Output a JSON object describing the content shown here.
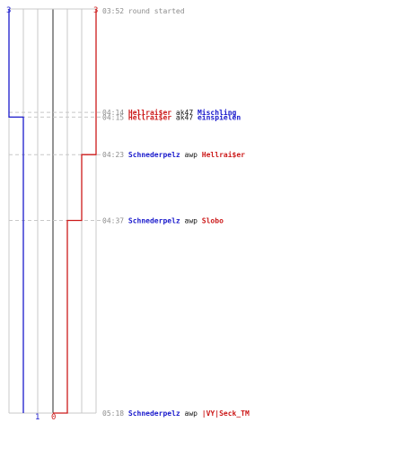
{
  "colors": {
    "blue_team": "#1a1acc",
    "red_team": "#cc1a1a",
    "grid": "#c8c8c8",
    "time": "#8c8c8c",
    "text": "#111111"
  },
  "chart_data": {
    "type": "line",
    "ylim_rows": [
      "03:52",
      "05:18"
    ],
    "start_counts": {
      "blue": "3",
      "red": "3"
    },
    "end_counts": {
      "blue": "1",
      "red": "0"
    },
    "series": [
      {
        "team": "blue",
        "color": "#1a1acc",
        "steps": [
          {
            "time": "03:52",
            "count": 3
          },
          {
            "time": "04:14",
            "count": 2
          },
          {
            "time": "04:15",
            "count": 1
          }
        ]
      },
      {
        "team": "red",
        "color": "#cc1a1a",
        "steps": [
          {
            "time": "03:52",
            "count": 3
          },
          {
            "time": "04:23",
            "count": 2
          },
          {
            "time": "04:37",
            "count": 1
          },
          {
            "time": "05:18",
            "count": 0
          }
        ]
      }
    ],
    "events": [
      {
        "time": "03:52",
        "killer": "",
        "killer_team": "",
        "weapon": "round started",
        "victim": "",
        "victim_team": ""
      },
      {
        "time": "04:14",
        "killer": "Hellrai$er",
        "killer_team": "red",
        "weapon": "ak47",
        "victim": "Mischling",
        "victim_team": "blue"
      },
      {
        "time": "04:15",
        "killer": "Hellrai$er",
        "killer_team": "red",
        "weapon": "ak47",
        "victim": "einspielen",
        "victim_team": "blue"
      },
      {
        "time": "04:23",
        "killer": "Schnederpelz",
        "killer_team": "blue",
        "weapon": "awp",
        "victim": "Hellrai$er",
        "victim_team": "red"
      },
      {
        "time": "04:37",
        "killer": "Schnederpelz",
        "killer_team": "blue",
        "weapon": "awp",
        "victim": "Slobo",
        "victim_team": "red"
      },
      {
        "time": "05:18",
        "killer": "Schnederpelz",
        "killer_team": "blue",
        "weapon": "awp",
        "victim": "|VY|Seck_TM",
        "victim_team": "red"
      }
    ]
  }
}
